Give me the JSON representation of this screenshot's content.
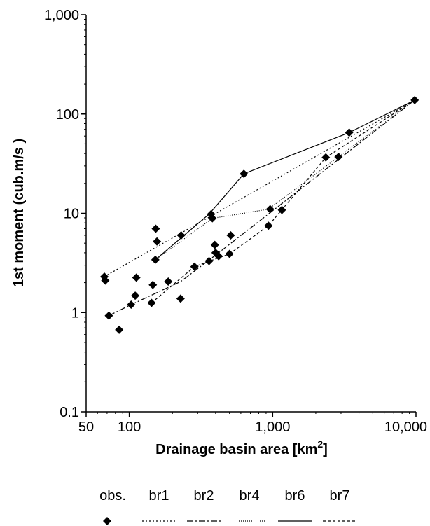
{
  "chart_data": {
    "type": "scatter",
    "title": "",
    "xlabel": "Drainage basin area [km",
    "xlabel_sup": "2",
    "xlabel_close": "]",
    "ylabel": "1st moment (cub.m/s )",
    "x_scale": "log",
    "y_scale": "log",
    "xlim": [
      50,
      10000
    ],
    "ylim": [
      0.1,
      1000
    ],
    "x_ticks": [
      50,
      100,
      1000,
      10000
    ],
    "x_tick_labels": [
      "50",
      "100",
      "1,000",
      "10,000"
    ],
    "y_ticks": [
      0.1,
      1,
      10,
      100,
      1000
    ],
    "y_tick_labels": [
      "0.1",
      "1",
      "10",
      "100",
      "1,000"
    ],
    "grid": false,
    "legend_position": "bottom",
    "observations": {
      "name": "obs.",
      "marker": "diamond",
      "x": [
        67,
        68,
        72,
        85,
        103,
        110,
        112,
        143,
        146,
        152,
        153,
        156,
        187,
        228,
        230,
        285,
        360,
        372,
        380,
        395,
        400,
        420,
        500,
        510,
        630,
        935,
        960,
        1160,
        2350,
        2880,
        3420,
        9800
      ],
      "y": [
        2.3,
        2.1,
        0.93,
        0.67,
        1.2,
        1.48,
        2.25,
        1.25,
        1.9,
        3.4,
        7.0,
        5.2,
        2.05,
        1.38,
        6.0,
        2.9,
        3.3,
        9.8,
        8.9,
        4.8,
        4.0,
        3.7,
        3.9,
        6.0,
        25.0,
        7.5,
        11.0,
        10.8,
        36.5,
        37.0,
        65.0,
        138.0
      ]
    },
    "series": [
      {
        "name": "br1",
        "dash": "2,3",
        "x": [
          67,
          9800
        ],
        "y": [
          2.3,
          138
        ]
      },
      {
        "name": "br2",
        "dash": "9,3,2,3",
        "x": [
          72,
          103,
          228,
          420,
          9800
        ],
        "y": [
          0.93,
          1.2,
          2.05,
          4.0,
          138
        ]
      },
      {
        "name": "br4",
        "dash": "1,2",
        "x": [
          152,
          380,
          935,
          2880,
          9800
        ],
        "y": [
          3.4,
          8.9,
          11.0,
          37.0,
          138
        ]
      },
      {
        "name": "br6",
        "dash": "",
        "x": [
          152,
          360,
          630,
          3420,
          9800
        ],
        "y": [
          3.4,
          9.8,
          25.0,
          65.0,
          138
        ]
      },
      {
        "name": "br7",
        "dash": "4,3",
        "x": [
          143,
          285,
          500,
          935,
          2350,
          9800
        ],
        "y": [
          1.25,
          2.9,
          3.9,
          7.5,
          36.5,
          138
        ]
      }
    ]
  }
}
